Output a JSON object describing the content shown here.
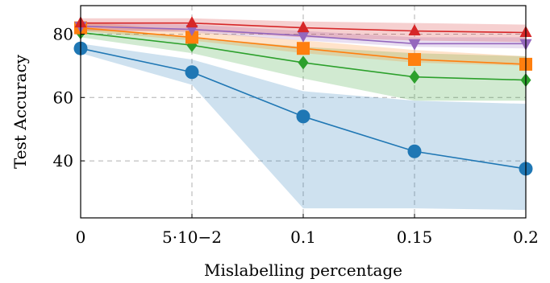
{
  "chart_data": {
    "type": "line",
    "title": "",
    "xlabel": "Mislabelling percentage",
    "ylabel": "Test Accuracy",
    "x": [
      0,
      0.05,
      0.1,
      0.15,
      0.2
    ],
    "x_tick_labels": [
      "0",
      "5·10−2",
      "0.1",
      "0.15",
      "0.2"
    ],
    "y_ticks": [
      40,
      60,
      80
    ],
    "xlim": [
      0,
      0.2
    ],
    "ylim": [
      22,
      89
    ],
    "grid": true,
    "series": [
      {
        "color": "#1f77b4",
        "marker": "circle",
        "values": [
          75.5,
          68,
          54,
          43,
          37.5
        ],
        "band_low": [
          74,
          64,
          25,
          25,
          24.5
        ],
        "band_high": [
          77,
          72,
          62,
          59,
          58
        ]
      },
      {
        "color": "#2ca02c",
        "marker": "diamond",
        "values": [
          80.5,
          76.5,
          71,
          66.5,
          65.5
        ],
        "band_low": [
          79,
          74,
          66,
          59,
          59
        ],
        "band_high": [
          82,
          79,
          76,
          74,
          73
        ]
      },
      {
        "color": "#ff7f0e",
        "marker": "square",
        "values": [
          82,
          79,
          75.5,
          72,
          70.5
        ],
        "band_low": [
          81,
          78,
          74,
          71,
          70
        ],
        "band_high": [
          84,
          81,
          78,
          75,
          73
        ]
      },
      {
        "color": "#9467bd",
        "marker": "triangle-down",
        "values": [
          82.5,
          81.5,
          79.5,
          77,
          77
        ],
        "band_low": [
          81.5,
          80.5,
          78,
          76,
          75.5
        ],
        "band_high": [
          83.5,
          83,
          81,
          79,
          79
        ]
      },
      {
        "color": "#d62728",
        "marker": "triangle-up",
        "values": [
          83.5,
          83.5,
          82,
          81,
          80.5
        ],
        "band_low": [
          81,
          81,
          79,
          78,
          77.5
        ],
        "band_high": [
          85,
          85,
          84,
          83.5,
          83
        ]
      }
    ]
  }
}
